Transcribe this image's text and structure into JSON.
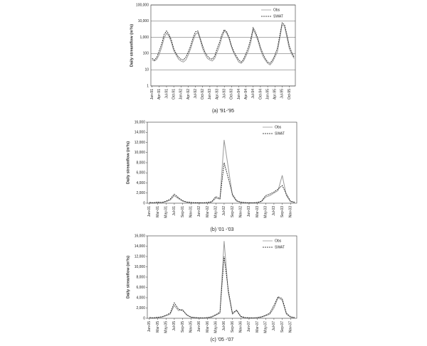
{
  "chart_data": [
    {
      "type": "line",
      "caption": "(a) '91-'95",
      "ylabel": "Daily streamflow (m³/s)",
      "log_scale": true,
      "grid": true,
      "legend": "upper right",
      "categories": [
        "Jan-91",
        null,
        null,
        "Apr-91",
        null,
        null,
        "Jul-91",
        null,
        null,
        "Oct-91",
        null,
        null,
        "Jan-92",
        null,
        null,
        "Apr-92",
        null,
        null,
        "Jul-92",
        null,
        null,
        "Oct-92",
        null,
        null,
        "Jan-93",
        null,
        null,
        "Apr-93",
        null,
        null,
        "Jul-93",
        null,
        null,
        "Oct-93",
        null,
        null,
        "Jan-94",
        null,
        null,
        "Apr-94",
        null,
        null,
        "Jul-94",
        null,
        null,
        "Oct-94",
        null,
        null,
        "Jan-95",
        null,
        null,
        "Apr-95",
        null,
        null,
        "Jul-95",
        null,
        null,
        "Oct-95",
        null,
        null
      ],
      "ylim": [
        1,
        100000
      ],
      "yticks": [
        1,
        10,
        100,
        {
          "value": 1000,
          "label": "1,000"
        },
        {
          "value": 10000,
          "label": "10,000"
        },
        {
          "value": 100000,
          "label": "100,000"
        }
      ],
      "series": [
        {
          "name": "Obs",
          "color": "#999999",
          "dash": false,
          "values": [
            40,
            35,
            45,
            90,
            250,
            900,
            1800,
            1200,
            500,
            150,
            80,
            45,
            35,
            30,
            40,
            80,
            200,
            600,
            1500,
            2000,
            700,
            200,
            90,
            50,
            40,
            35,
            50,
            120,
            300,
            1000,
            2500,
            1800,
            800,
            250,
            100,
            55,
            30,
            25,
            35,
            70,
            150,
            500,
            3000,
            1500,
            600,
            180,
            70,
            40,
            25,
            20,
            30,
            60,
            120,
            800,
            6000,
            5000,
            1000,
            200,
            90,
            50
          ]
        },
        {
          "name": "SWAT",
          "color": "#111111",
          "dash": true,
          "values": [
            50,
            40,
            60,
            150,
            400,
            1500,
            2500,
            1500,
            700,
            200,
            100,
            60,
            45,
            40,
            60,
            120,
            300,
            900,
            2200,
            2500,
            900,
            300,
            120,
            70,
            50,
            45,
            70,
            200,
            500,
            1500,
            3000,
            2200,
            1000,
            300,
            130,
            70,
            40,
            30,
            45,
            100,
            250,
            800,
            4000,
            2000,
            800,
            250,
            100,
            50,
            30,
            25,
            40,
            80,
            200,
            1200,
            8000,
            6000,
            1500,
            300,
            120,
            60
          ]
        }
      ]
    },
    {
      "type": "line",
      "caption": "(b) '01 -'03",
      "ylabel": "Daily streamflow (m³/s)",
      "log_scale": false,
      "grid": false,
      "legend": "upper right",
      "categories": [
        "Jan-01",
        null,
        "Mar-01",
        null,
        "May-01",
        null,
        "Jul-01",
        null,
        "Sep-01",
        null,
        "Nov-01",
        null,
        "Jan-02",
        null,
        "Mar-02",
        null,
        "May-02",
        null,
        "Jul-02",
        null,
        "Sep-02",
        null,
        "Nov-02",
        null,
        "Jan-03",
        null,
        "Mar-03",
        null,
        "May-03",
        null,
        "Jul-03",
        null,
        "Sep-03",
        null,
        "Nov-03",
        null
      ],
      "ylim": [
        0,
        16000
      ],
      "yticks": [
        0,
        {
          "value": 2000,
          "label": "2,000"
        },
        {
          "value": 4000,
          "label": "4,000"
        },
        {
          "value": 6000,
          "label": "6,000"
        },
        {
          "value": 8000,
          "label": "8,000"
        },
        {
          "value": 10000,
          "label": "10,000"
        },
        {
          "value": 12000,
          "label": "12,000"
        },
        {
          "value": 14000,
          "label": "14,000"
        },
        {
          "value": 16000,
          "label": "16,000"
        }
      ],
      "series": [
        {
          "name": "Obs",
          "color": "#999999",
          "dash": false,
          "values": [
            100,
            80,
            150,
            100,
            300,
            600,
            1500,
            900,
            400,
            200,
            100,
            80,
            80,
            70,
            100,
            200,
            1000,
            800,
            12500,
            7000,
            1500,
            400,
            150,
            100,
            80,
            70,
            100,
            300,
            1200,
            1500,
            2000,
            2500,
            5500,
            1500,
            300,
            150
          ]
        },
        {
          "name": "SWAT",
          "color": "#111111",
          "dash": true,
          "values": [
            150,
            100,
            200,
            150,
            400,
            800,
            1800,
            1100,
            500,
            250,
            150,
            100,
            100,
            90,
            150,
            300,
            1300,
            900,
            8000,
            5000,
            1800,
            500,
            200,
            120,
            100,
            90,
            150,
            400,
            1500,
            1800,
            2200,
            2800,
            3500,
            1800,
            400,
            200
          ]
        }
      ]
    },
    {
      "type": "line",
      "caption": "(c) '05 -'07",
      "ylabel": "Daily streamflow (m³/s)",
      "log_scale": false,
      "grid": false,
      "legend": "upper right",
      "categories": [
        "Jan-05",
        null,
        "Mar-05",
        null,
        "May-05",
        null,
        "Jul-05",
        null,
        "Sep-05",
        null,
        "Nov-05",
        null,
        "Jan-06",
        null,
        "Mar-06",
        null,
        "May-06",
        null,
        "Jul-06",
        null,
        "Sep-06",
        null,
        "Nov-06",
        null,
        "Jan-07",
        null,
        "Mar-07",
        null,
        "May-07",
        null,
        "Jul-07",
        null,
        "Sep-07",
        null,
        "Nov-07",
        null
      ],
      "ylim": [
        0,
        16000
      ],
      "yticks": [
        0,
        {
          "value": 2000,
          "label": "2,000"
        },
        {
          "value": 4000,
          "label": "4,000"
        },
        {
          "value": 6000,
          "label": "6,000"
        },
        {
          "value": 8000,
          "label": "8,000"
        },
        {
          "value": 10000,
          "label": "10,000"
        },
        {
          "value": 12000,
          "label": "12,000"
        },
        {
          "value": 14000,
          "label": "14,000"
        },
        {
          "value": 16000,
          "label": "16,000"
        }
      ],
      "series": [
        {
          "name": "Obs",
          "color": "#999999",
          "dash": false,
          "values": [
            100,
            80,
            150,
            200,
            500,
            800,
            2500,
            1500,
            1700,
            600,
            200,
            100,
            80,
            70,
            100,
            200,
            600,
            1000,
            15000,
            5000,
            800,
            1500,
            300,
            100,
            80,
            70,
            100,
            200,
            500,
            800,
            2000,
            4000,
            3500,
            800,
            200,
            100
          ]
        },
        {
          "name": "SWAT",
          "color": "#111111",
          "dash": true,
          "values": [
            150,
            100,
            200,
            300,
            600,
            1000,
            3000,
            1800,
            1500,
            700,
            250,
            150,
            100,
            90,
            150,
            300,
            700,
            1200,
            12000,
            5500,
            1000,
            1600,
            400,
            150,
            100,
            90,
            150,
            300,
            600,
            1000,
            2500,
            4200,
            3800,
            1000,
            300,
            150
          ]
        }
      ]
    }
  ]
}
